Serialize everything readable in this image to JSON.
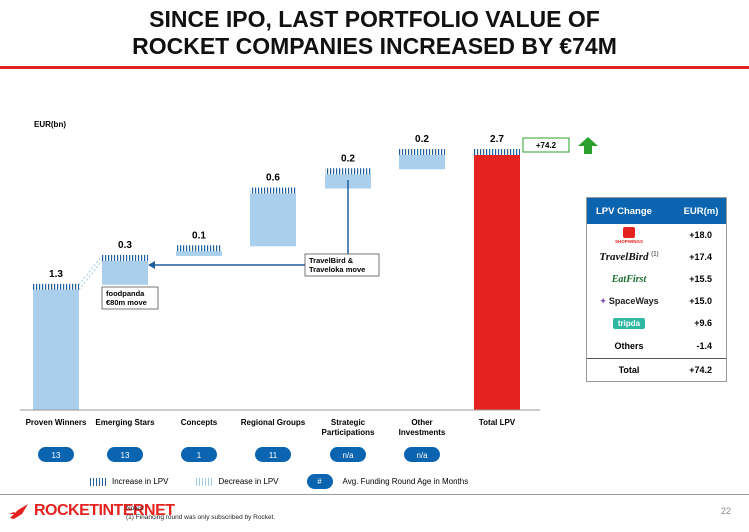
{
  "title_line1": "SINCE IPO, LAST PORTFOLIO VALUE OF",
  "title_line2": "ROCKET COMPANIES INCREASED BY €74M",
  "colors": {
    "accent": "#e4221f",
    "blue": "#0a64b0",
    "bar_light": "#a9cfec",
    "increase_hatch": "#1f5fa0",
    "badge": "#0a64b0"
  },
  "chart_data": {
    "type": "bar",
    "subtype": "waterfall",
    "ylabel": "EUR(bn)",
    "ylim": [
      0,
      2.7
    ],
    "categories": [
      "Proven Winners",
      "Emerging Stars",
      "Concepts",
      "Regional Groups",
      "Strategic Participations",
      "Other Investments",
      "Total LPV"
    ],
    "category_lines": [
      [
        "Proven Winners"
      ],
      [
        "Emerging Stars"
      ],
      [
        "Concepts"
      ],
      [
        "Regional Groups"
      ],
      [
        "Strategic",
        "Participations"
      ],
      [
        "Other",
        "Investments"
      ],
      [
        "Total LPV"
      ]
    ],
    "values": [
      1.3,
      0.3,
      0.1,
      0.6,
      0.2,
      0.2,
      2.7
    ],
    "value_labels": [
      "1.3",
      "0.3",
      "0.1",
      "0.6",
      "0.2",
      "0.2",
      "2.7"
    ],
    "avg_funding_round_age": [
      "13",
      "13",
      "1",
      "11",
      "n/a",
      "n/a",
      ""
    ],
    "total_change_label": "+74.2",
    "annotations": [
      {
        "text_lines": [
          "foodpanda",
          "€80m move"
        ]
      },
      {
        "text_lines": [
          "TravelBird &",
          "Traveloka move"
        ]
      }
    ],
    "legend": [
      {
        "label": "Increase in LPV"
      },
      {
        "label": "Decrease in LPV"
      },
      {
        "badge": "#",
        "label": "Avg. Funding Round Age in Months"
      }
    ]
  },
  "lpv_table": {
    "header": [
      "LPV Change",
      "EUR(m)"
    ],
    "rows": [
      {
        "company_text": "SHOPWINGS",
        "logo": "shopwings-logo",
        "value": "+18.0"
      },
      {
        "company_text": "TravelBird",
        "superscript": "(1)",
        "logo": "travelbird-logo",
        "value": "+17.4"
      },
      {
        "company_text": "EatFirst",
        "logo": "eatfirst-logo",
        "value": "+15.5"
      },
      {
        "company_text": "SpaceWays",
        "logo": "spaceways-logo",
        "value": "+15.0"
      },
      {
        "company_text": "tripda",
        "logo": "tripda-logo",
        "value": "+9.6"
      },
      {
        "company_text": "Others",
        "logo": "",
        "value": "-1.4"
      }
    ],
    "total_label": "Total",
    "total_value": "+74.2"
  },
  "footer": {
    "brand": "ROCKETINTERNET",
    "notes_title": "Notes:",
    "note_1": "(1)    Financing round was only subscribed by Rocket.",
    "page_number": "22"
  }
}
